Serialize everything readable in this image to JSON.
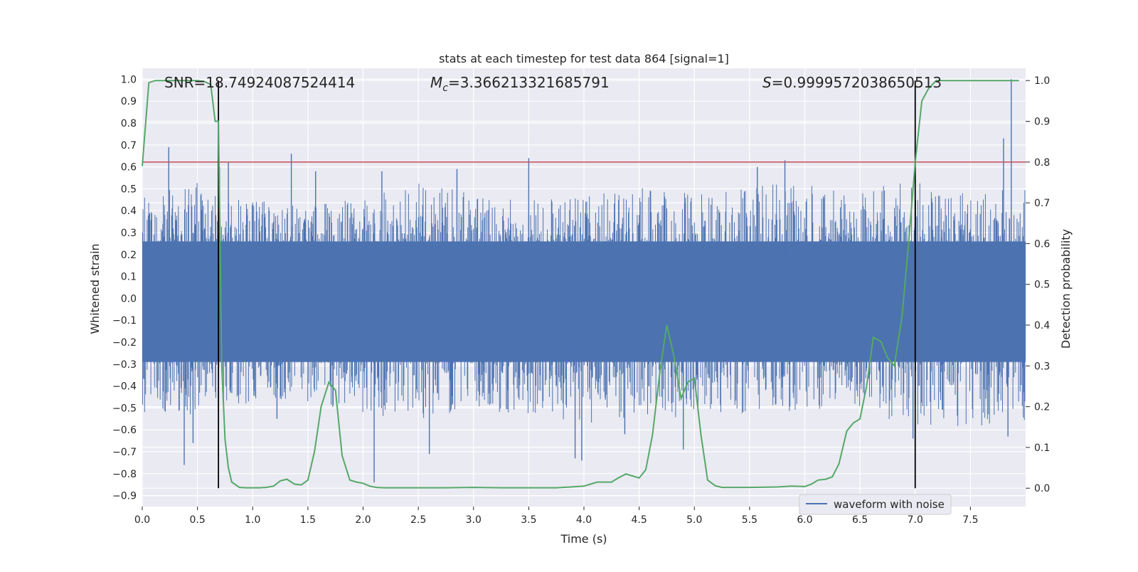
{
  "chart_data": {
    "type": "line",
    "title": "stats at each timestep for test data 864 [signal=1]",
    "xlabel": "Time (s)",
    "ylabel_left": "Whitened strain",
    "ylabel_right": "Detection probability",
    "xlim": [
      0.0,
      8.0
    ],
    "ylim_left": [
      -0.95,
      1.05
    ],
    "ylim_right": [
      -0.045,
      1.03
    ],
    "x_ticks": [
      0.0,
      0.5,
      1.0,
      1.5,
      2.0,
      2.5,
      3.0,
      3.5,
      4.0,
      4.5,
      5.0,
      5.5,
      6.0,
      6.5,
      7.0,
      7.5
    ],
    "x_tick_labels": [
      "0.0",
      "0.5",
      "1.0",
      "1.5",
      "2.0",
      "2.5",
      "3.0",
      "3.5",
      "4.0",
      "4.5",
      "5.0",
      "5.5",
      "6.0",
      "6.5",
      "7.0",
      "7.5"
    ],
    "y_left_ticks": [
      1.0,
      0.9,
      0.8,
      0.7,
      0.6,
      0.5,
      0.4,
      0.3,
      0.2,
      0.1,
      0.0,
      -0.1,
      -0.2,
      -0.3,
      -0.4,
      -0.5,
      -0.6,
      -0.7,
      -0.8,
      -0.9
    ],
    "y_left_tick_labels": [
      "1.0",
      "0.9",
      "0.8",
      "0.7",
      "0.6",
      "0.5",
      "0.4",
      "0.3",
      "0.2",
      "0.1",
      "0.0",
      "−0.1",
      "−0.2",
      "−0.3",
      "−0.4",
      "−0.5",
      "−0.6",
      "−0.7",
      "−0.8",
      "−0.9"
    ],
    "y_right_ticks": [
      1.0,
      0.9,
      0.8,
      0.7,
      0.6,
      0.5,
      0.4,
      0.3,
      0.2,
      0.1,
      0.0
    ],
    "y_right_tick_labels": [
      "1.0",
      "0.9",
      "0.8",
      "0.7",
      "0.6",
      "0.5",
      "0.4",
      "0.3",
      "0.2",
      "0.1",
      "0.0"
    ],
    "grid": true,
    "background": "#eaeaf2",
    "annotations": {
      "snr": "SNR=18.74924087524414",
      "mc_symbol": "M",
      "mc_sub": "c",
      "mc_value": "=3.366213321685791",
      "s_symbol": "S",
      "s_value": "=0.9999572038650513"
    },
    "legend": {
      "label": "waveform with noise",
      "placement": "lower-right"
    },
    "threshold": {
      "value": 0.8,
      "axis": "right",
      "color": "#c44e52"
    },
    "vlines": {
      "x": [
        0.69,
        7.0
      ],
      "color": "#000000"
    },
    "series": [
      {
        "name": "waveform with noise",
        "axis": "left",
        "color": "#4c72b0",
        "kind": "noise",
        "envelope_upper": [
          0.45,
          0.5,
          0.45,
          0.4,
          0.45,
          0.5,
          0.45,
          0.42,
          0.45,
          0.48,
          0.45,
          0.48,
          0.5,
          0.48,
          0.5,
          0.45,
          0.5
        ],
        "envelope_lower": [
          -0.5,
          -0.5,
          -0.45,
          -0.45,
          -0.5,
          -0.52,
          -0.48,
          -0.5,
          -0.55,
          -0.5,
          -0.52,
          -0.5,
          -0.5,
          -0.5,
          -0.55,
          -0.55,
          -0.55
        ],
        "spikes": [
          {
            "x": 0.24,
            "y": 0.69
          },
          {
            "x": 0.38,
            "y": -0.76
          },
          {
            "x": 0.46,
            "y": -0.66
          },
          {
            "x": 0.7,
            "y": 0.6
          },
          {
            "x": 0.78,
            "y": 0.62
          },
          {
            "x": 0.8,
            "y": -0.43
          },
          {
            "x": 1.22,
            "y": -0.55
          },
          {
            "x": 1.35,
            "y": 0.66
          },
          {
            "x": 1.57,
            "y": 0.58
          },
          {
            "x": 2.1,
            "y": -0.84
          },
          {
            "x": 2.17,
            "y": 0.58
          },
          {
            "x": 2.6,
            "y": -0.71
          },
          {
            "x": 2.85,
            "y": 0.59
          },
          {
            "x": 3.5,
            "y": 0.64
          },
          {
            "x": 3.92,
            "y": -0.73
          },
          {
            "x": 3.98,
            "y": -0.74
          },
          {
            "x": 4.37,
            "y": -0.62
          },
          {
            "x": 5.57,
            "y": 0.6
          },
          {
            "x": 5.82,
            "y": 0.63
          },
          {
            "x": 4.9,
            "y": -0.69
          },
          {
            "x": 6.98,
            "y": -0.64
          },
          {
            "x": 7.8,
            "y": 0.73
          },
          {
            "x": 7.87,
            "y": 1.0
          },
          {
            "x": 7.84,
            "y": -0.63
          }
        ]
      },
      {
        "name": "",
        "axis": "right",
        "color": "#55a868",
        "x": [
          0.0,
          0.06,
          0.12,
          0.19,
          0.25,
          0.31,
          0.38,
          0.44,
          0.5,
          0.56,
          0.62,
          0.66,
          0.69,
          0.72,
          0.75,
          0.78,
          0.81,
          0.88,
          0.94,
          1.0,
          1.06,
          1.12,
          1.19,
          1.25,
          1.31,
          1.38,
          1.44,
          1.5,
          1.56,
          1.62,
          1.69,
          1.75,
          1.81,
          1.88,
          1.94,
          2.0,
          2.06,
          2.12,
          2.19,
          2.25,
          2.5,
          2.75,
          3.0,
          3.25,
          3.5,
          3.75,
          3.88,
          4.0,
          4.06,
          4.12,
          4.19,
          4.25,
          4.31,
          4.38,
          4.44,
          4.5,
          4.56,
          4.62,
          4.69,
          4.75,
          4.81,
          4.88,
          4.94,
          5.0,
          5.06,
          5.12,
          5.19,
          5.25,
          5.5,
          5.75,
          5.88,
          6.0,
          6.06,
          6.12,
          6.19,
          6.25,
          6.31,
          6.38,
          6.44,
          6.5,
          6.56,
          6.62,
          6.69,
          6.75,
          6.81,
          6.88,
          6.94,
          7.0,
          7.06,
          7.12,
          7.19,
          7.25,
          7.5,
          7.75,
          7.94
        ],
        "y": [
          0.79,
          0.995,
          1.0,
          1.0,
          1.0,
          1.0,
          1.0,
          1.0,
          1.0,
          0.998,
          0.99,
          0.9,
          0.9,
          0.3,
          0.12,
          0.05,
          0.015,
          0.002,
          0.001,
          0.001,
          0.001,
          0.002,
          0.005,
          0.018,
          0.022,
          0.01,
          0.008,
          0.02,
          0.09,
          0.2,
          0.26,
          0.24,
          0.08,
          0.02,
          0.015,
          0.012,
          0.005,
          0.002,
          0.001,
          0.001,
          0.001,
          0.001,
          0.002,
          0.001,
          0.001,
          0.001,
          0.003,
          0.005,
          0.01,
          0.015,
          0.015,
          0.015,
          0.025,
          0.035,
          0.03,
          0.025,
          0.045,
          0.13,
          0.29,
          0.4,
          0.33,
          0.22,
          0.26,
          0.27,
          0.13,
          0.02,
          0.006,
          0.002,
          0.002,
          0.003,
          0.005,
          0.004,
          0.01,
          0.02,
          0.022,
          0.028,
          0.06,
          0.14,
          0.16,
          0.17,
          0.25,
          0.37,
          0.36,
          0.32,
          0.3,
          0.42,
          0.6,
          0.8,
          0.95,
          0.98,
          1.0,
          1.0,
          1.0,
          1.0,
          1.0
        ]
      }
    ]
  }
}
